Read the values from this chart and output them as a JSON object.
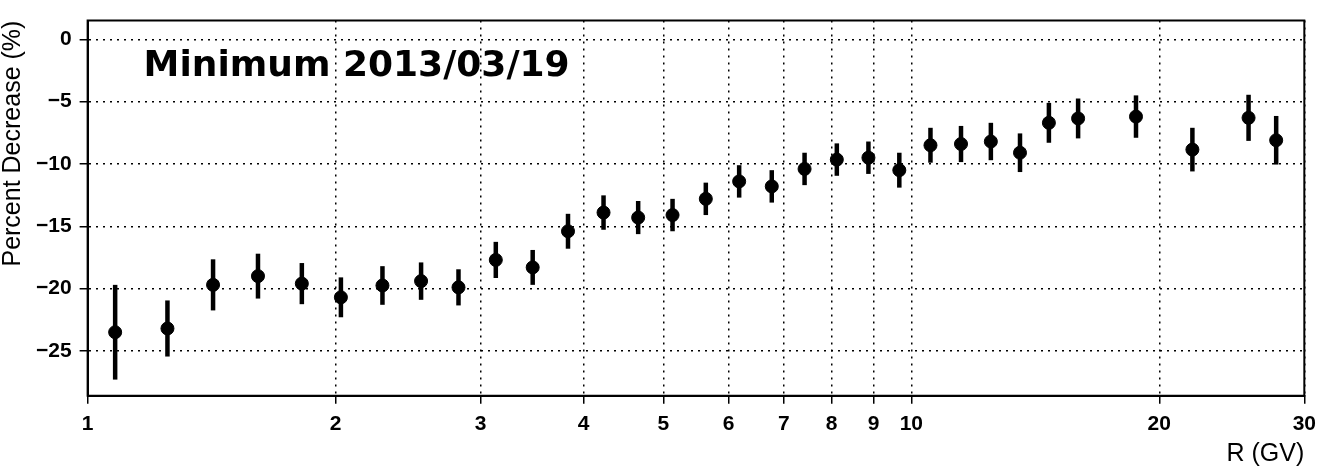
{
  "chart_data": {
    "type": "scatter",
    "xlabel": "R (GV)",
    "ylabel": "Percent Decrease (%)",
    "annotations": [
      "Minimum 2013/03/19"
    ],
    "log": "x",
    "xlim": [
      1,
      30
    ],
    "ylim": [
      -28.6,
      1.5
    ],
    "xticks": [
      1,
      2,
      3,
      4,
      5,
      6,
      7,
      8,
      9,
      10,
      20,
      30
    ],
    "yticks": [
      {
        "value": -25,
        "label": "−25"
      },
      {
        "value": -20,
        "label": "−20"
      },
      {
        "value": -15,
        "label": "−15"
      },
      {
        "value": -10,
        "label": "−10"
      },
      {
        "value": -5,
        "label": "−5"
      },
      0
    ],
    "grid": true,
    "marker": "circle",
    "legend": false,
    "series": [
      {
        "color": "#000000",
        "x": [
          1.08,
          1.25,
          1.42,
          1.61,
          1.82,
          2.03,
          2.28,
          2.54,
          2.82,
          3.13,
          3.47,
          3.83,
          4.23,
          4.66,
          5.13,
          5.63,
          6.18,
          6.77,
          7.42,
          8.12,
          8.87,
          9.67,
          10.55,
          11.49,
          12.49,
          13.55,
          14.69,
          15.94,
          18.74,
          21.94,
          25.67,
          27.73
        ],
        "values": [
          -23.5,
          -23.2,
          -19.7,
          -19.0,
          -19.6,
          -20.7,
          -19.75,
          -19.4,
          -19.9,
          -17.7,
          -18.3,
          -15.4,
          -13.9,
          -14.3,
          -14.1,
          -12.8,
          -11.4,
          -11.8,
          -10.4,
          -9.65,
          -9.5,
          -10.5,
          -8.5,
          -8.4,
          -8.2,
          -9.1,
          -6.7,
          -6.35,
          -6.2,
          -8.85,
          -6.3,
          -8.1
        ],
        "errors": [
          3.8,
          2.25,
          2.05,
          1.8,
          1.65,
          1.6,
          1.55,
          1.5,
          1.45,
          1.45,
          1.4,
          1.4,
          1.38,
          1.33,
          1.3,
          1.3,
          1.3,
          1.3,
          1.3,
          1.3,
          1.3,
          1.4,
          1.4,
          1.45,
          1.5,
          1.55,
          1.6,
          1.6,
          1.7,
          1.75,
          1.85,
          1.95
        ]
      }
    ]
  }
}
